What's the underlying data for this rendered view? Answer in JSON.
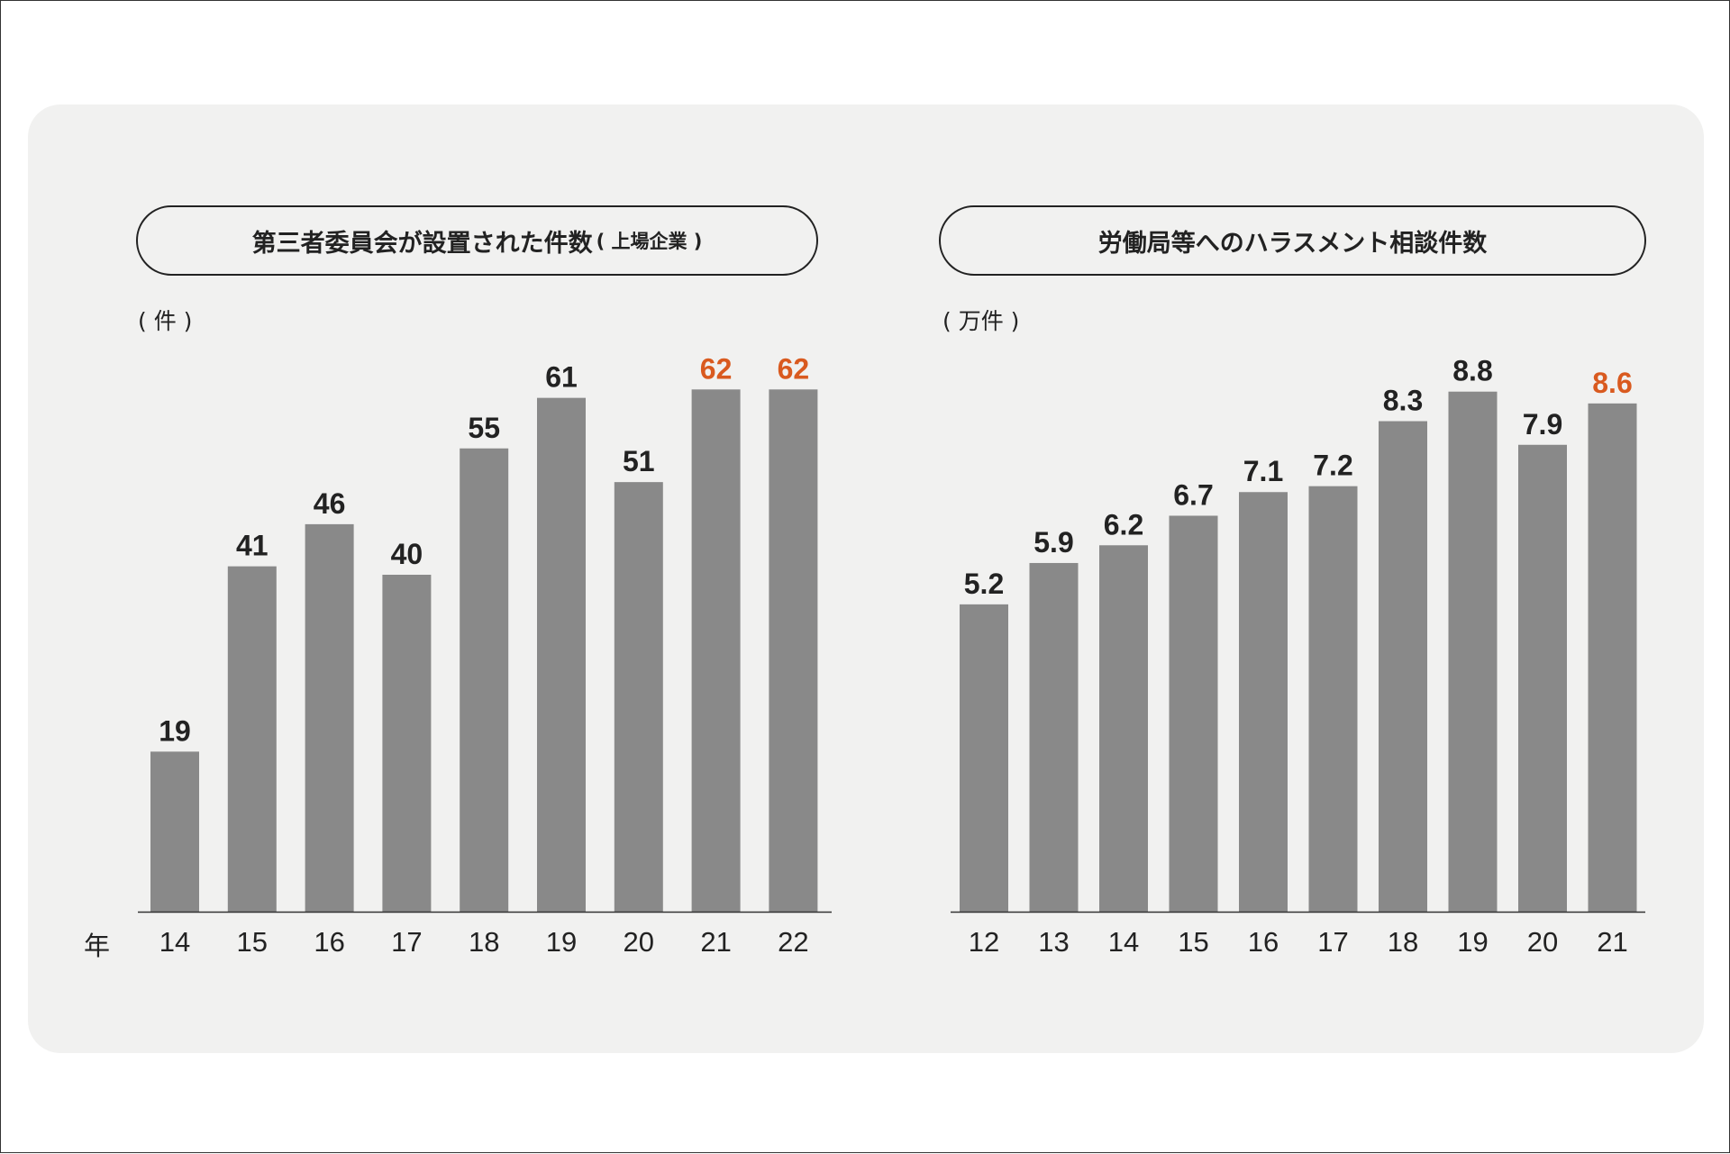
{
  "colors": {
    "bar": "#898989",
    "highlight": "#d95a1f",
    "text": "#222222",
    "panel": "#f1f1f0"
  },
  "chart_data": [
    {
      "type": "bar",
      "title": "第三者委員会が設置された件数",
      "subtitle": "( 上場企業 )",
      "unit": "( 件 )",
      "x_axis_prefix": "年",
      "categories": [
        "14",
        "15",
        "16",
        "17",
        "18",
        "19",
        "20",
        "21",
        "22"
      ],
      "values": [
        19,
        41,
        46,
        40,
        55,
        61,
        51,
        62,
        62
      ],
      "value_labels": [
        "19",
        "41",
        "46",
        "40",
        "55",
        "61",
        "51",
        "62",
        "62"
      ],
      "highlight": [
        false,
        false,
        false,
        false,
        false,
        false,
        false,
        true,
        true
      ],
      "ylim": [
        0,
        62
      ]
    },
    {
      "type": "bar",
      "title": "労働局等へのハラスメント相談件数",
      "unit": "( 万件 )",
      "categories": [
        "12",
        "13",
        "14",
        "15",
        "16",
        "17",
        "18",
        "19",
        "20",
        "21"
      ],
      "values": [
        5.2,
        5.9,
        6.2,
        6.7,
        7.1,
        7.2,
        8.3,
        8.8,
        7.9,
        8.6
      ],
      "value_labels": [
        "5.2",
        "5.9",
        "6.2",
        "6.7",
        "7.1",
        "7.2",
        "8.3",
        "8.8",
        "7.9",
        "8.6"
      ],
      "highlight": [
        false,
        false,
        false,
        false,
        false,
        false,
        false,
        false,
        false,
        true
      ],
      "ylim": [
        0,
        8.8
      ]
    }
  ]
}
